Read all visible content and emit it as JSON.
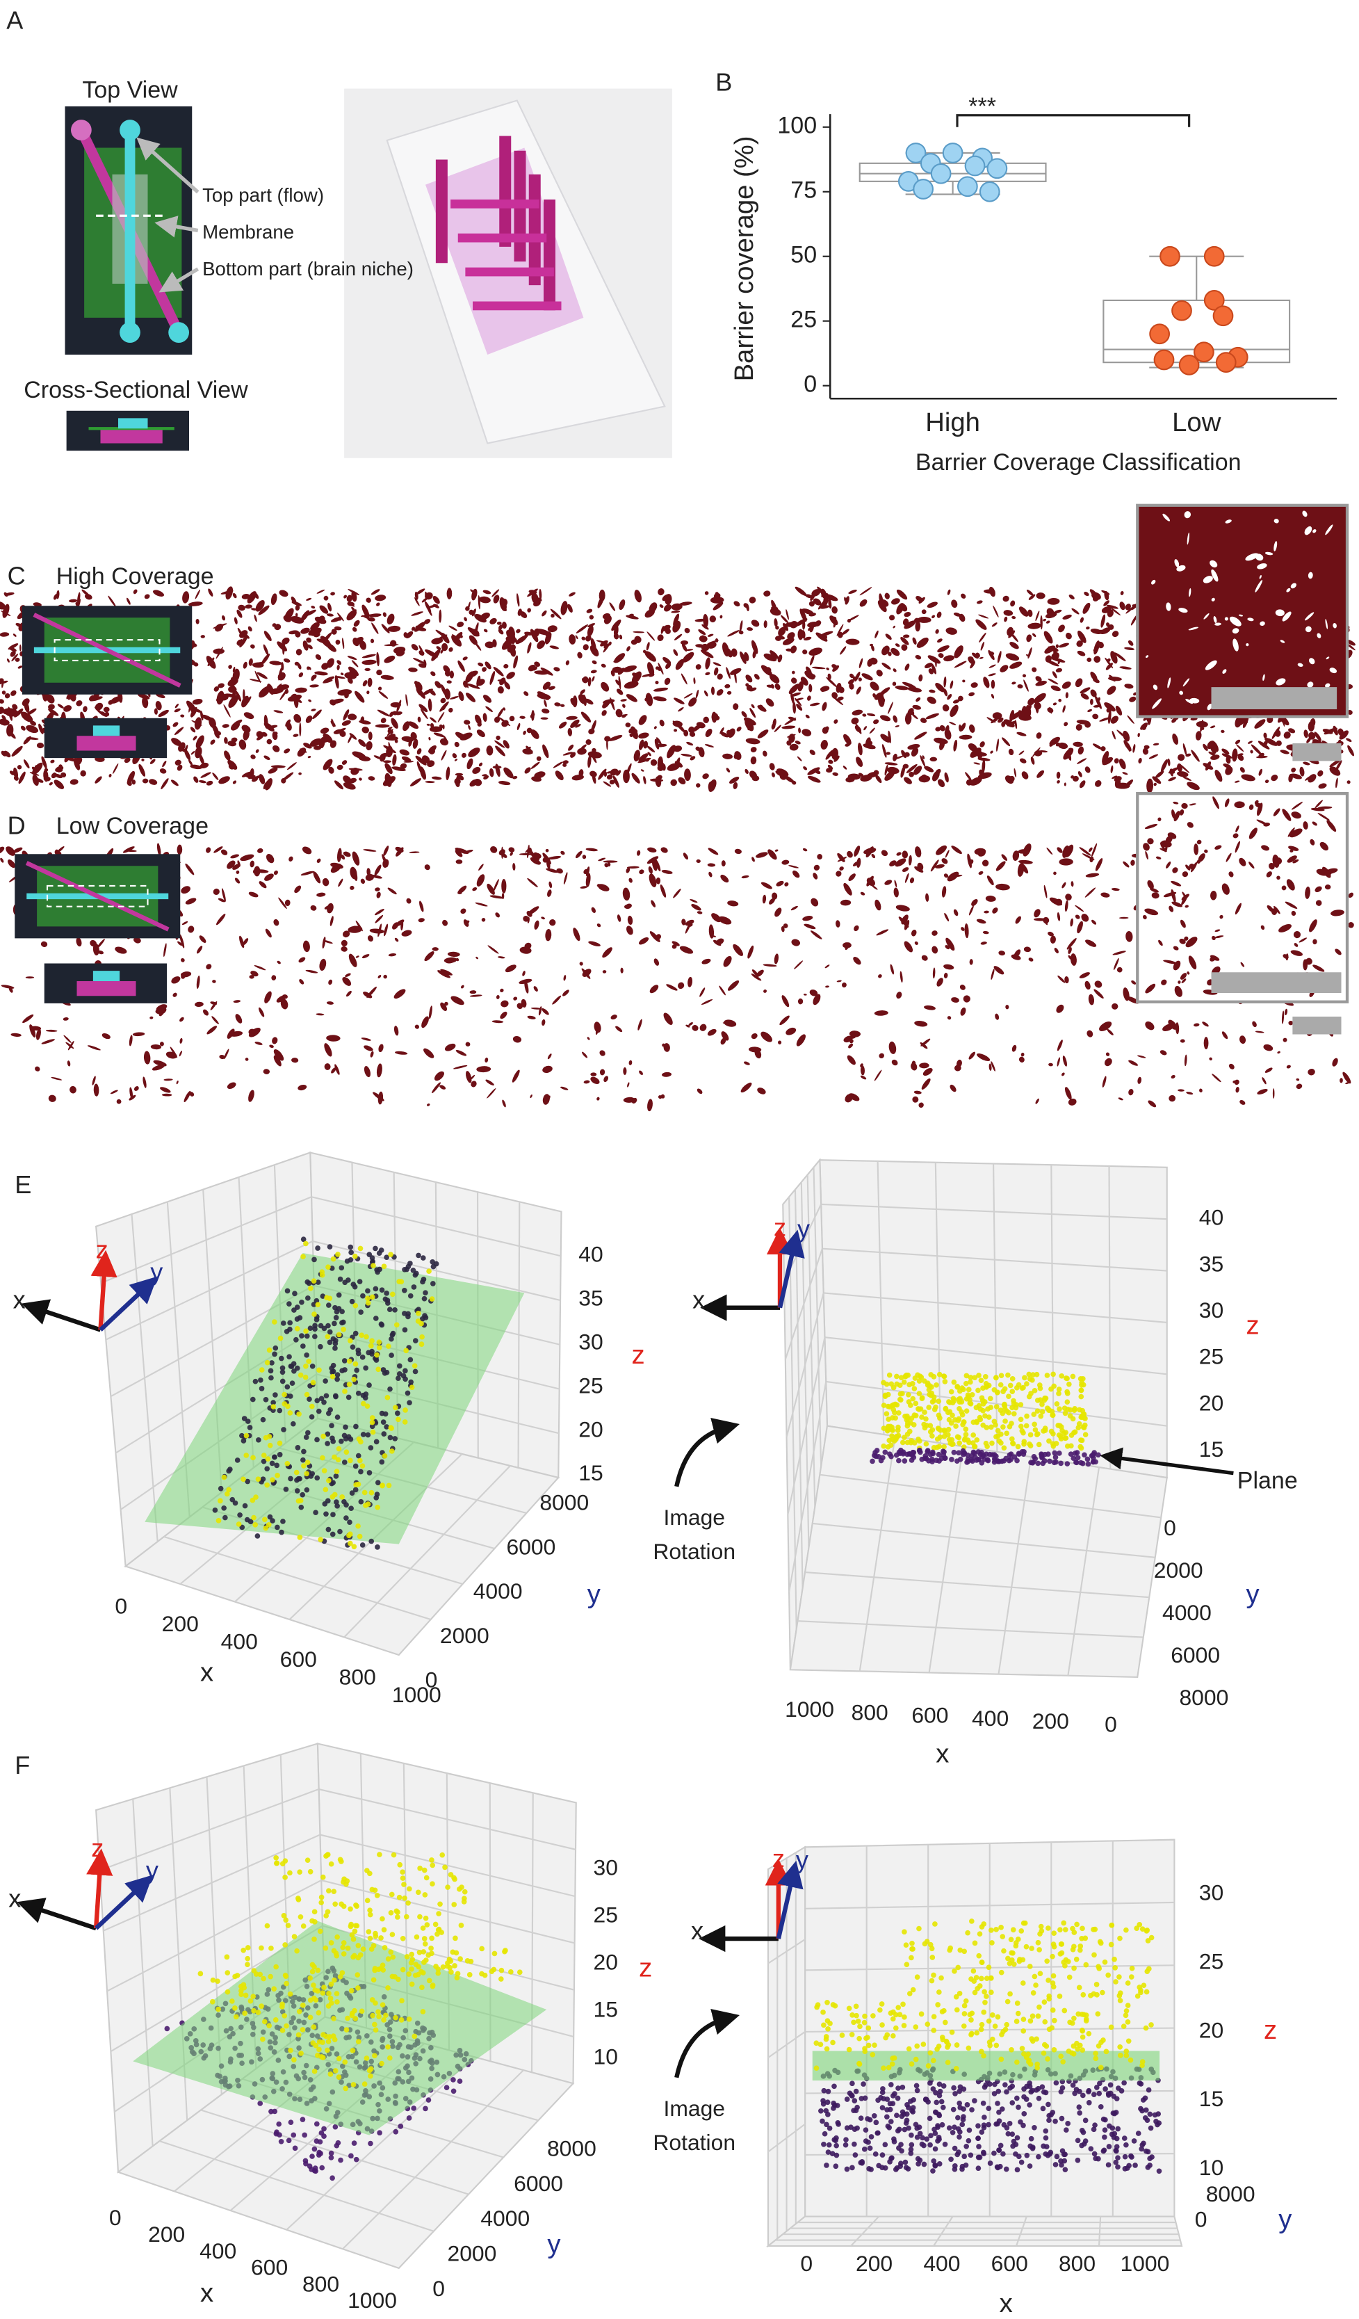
{
  "panels": {
    "A": {
      "label": "A",
      "top_view": "Top View",
      "callouts": [
        "Top part (flow)",
        "Membrane",
        "Bottom part (brain niche)"
      ],
      "cross_section": "Cross-Sectional View"
    },
    "B": {
      "label": "B"
    },
    "C": {
      "label": "C",
      "title": "High Coverage"
    },
    "D": {
      "label": "D",
      "title": "Low Coverage"
    },
    "E": {
      "label": "E",
      "rotation_label": [
        "Image",
        "Rotation"
      ],
      "left": {
        "triad": {
          "x": "x",
          "y": "y",
          "z": "z"
        },
        "axis_labels": {
          "x": "x",
          "y": "y",
          "z": "z"
        },
        "xticks": [
          0,
          200,
          400,
          600,
          800,
          1000
        ],
        "yticks": [
          0,
          2000,
          4000,
          6000,
          8000
        ],
        "zticks": [
          15,
          20,
          25,
          30,
          35,
          40
        ]
      },
      "right": {
        "triad": {
          "x": "x",
          "y": "y",
          "z": "z"
        },
        "axis_labels": {
          "x": "x",
          "y": "y",
          "z": "z"
        },
        "xticks": [
          1000,
          800,
          600,
          400,
          200,
          0
        ],
        "yticks": [
          0,
          2000,
          4000,
          6000,
          8000
        ],
        "zticks": [
          15,
          20,
          25,
          30,
          35,
          40
        ],
        "plane_label": "Plane"
      }
    },
    "F": {
      "label": "F",
      "rotation_label": [
        "Image",
        "Rotation"
      ],
      "left": {
        "triad": {
          "x": "x",
          "y": "y",
          "z": "z"
        },
        "axis_labels": {
          "x": "x",
          "y": "y",
          "z": "z"
        },
        "xticks": [
          0,
          200,
          400,
          600,
          800,
          1000
        ],
        "yticks": [
          0,
          2000,
          4000,
          6000,
          8000
        ],
        "zticks": [
          10,
          15,
          20,
          25,
          30
        ]
      },
      "right": {
        "triad": {
          "x": "x",
          "y": "y",
          "z": "z"
        },
        "axis_labels": {
          "x": "x",
          "y": "y",
          "z": "z"
        },
        "xticks": [
          0,
          200,
          400,
          600,
          800,
          1000
        ],
        "yticks": [
          8000,
          0
        ],
        "zticks": [
          10,
          15,
          20,
          25,
          30
        ]
      }
    }
  },
  "chart_data": {
    "type": "box",
    "ylabel": "Barrier coverage (%)",
    "xlabel": "Barrier Coverage Classification",
    "categories": [
      "High",
      "Low"
    ],
    "ylim": [
      -5,
      105
    ],
    "yticks": [
      0,
      25,
      50,
      75,
      100
    ],
    "significance": "***",
    "boxes": [
      {
        "whislo": 74,
        "q1": 79,
        "median": 82,
        "q3": 86,
        "whishi": 90
      },
      {
        "whislo": 7,
        "q1": 9,
        "median": 14,
        "q3": 33,
        "whishi": 50
      }
    ],
    "points": [
      [
        90,
        90,
        88,
        86,
        85,
        84,
        82,
        79,
        77,
        76,
        75
      ],
      [
        50,
        50,
        33,
        29,
        27,
        20,
        13,
        11,
        10,
        9,
        8
      ]
    ],
    "colors": [
      "#9fd3f2",
      "#f26a35"
    ]
  }
}
